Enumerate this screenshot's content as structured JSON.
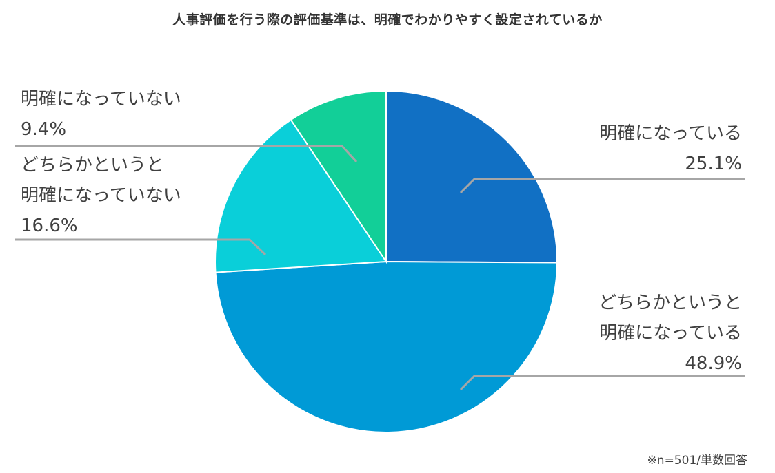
{
  "chart_data": {
    "type": "pie",
    "title": "人事評価を行う際の評価基準は、明確でわかりやすく設定されているか",
    "note": "※n=501/単数回答",
    "slices": [
      {
        "label_lines": [
          "明確になっている"
        ],
        "value": 25.1,
        "value_label": "25.1%",
        "color": "#1170c4"
      },
      {
        "label_lines": [
          "どちらかというと",
          "明確になっている"
        ],
        "value": 48.9,
        "value_label": "48.9%",
        "color": "#009ad6"
      },
      {
        "label_lines": [
          "どちらかというと",
          "明確になっていない"
        ],
        "value": 16.6,
        "value_label": "16.6%",
        "color": "#0acfd9"
      },
      {
        "label_lines": [
          "明確になっていない"
        ],
        "value": 9.4,
        "value_label": "9.4%",
        "color": "#12cf98"
      }
    ]
  }
}
